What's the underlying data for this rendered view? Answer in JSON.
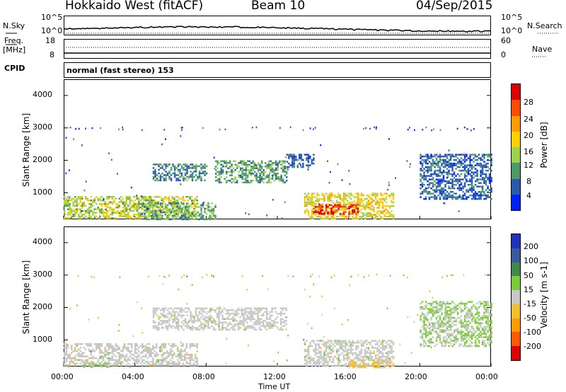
{
  "header": {
    "site": "Hokkaido West (fitACF)",
    "beam": "Beam 10",
    "date": "04/Sep/2015"
  },
  "top_panels": {
    "nsky_label": "N.Sky",
    "nsky_ticks": [
      "10^5",
      "10^0"
    ],
    "nsearch_label": "N.Search",
    "nsearch_ticks": [
      "10^5",
      "10^0"
    ],
    "freq_label": "Freq.",
    "freq_unit": "[MHz]",
    "freq_ticks": [
      "18",
      "8"
    ],
    "nave_label": "Nave",
    "nave_ticks": [
      "60",
      "0"
    ],
    "cpid_label": "CPID",
    "cpid_value": "normal (fast stereo) 153"
  },
  "power_panel": {
    "ylabel": "Slant Range [km]",
    "yticks": [
      "4000",
      "3000",
      "2000",
      "1000"
    ],
    "colorbar_label": "Power [dB]",
    "colorbar_ticks": [
      "28",
      "24",
      "20",
      "16",
      "12",
      "8",
      "4"
    ],
    "colorbar_colors": [
      "#e00000",
      "#ff4a00",
      "#ff9a00",
      "#ffcf00",
      "#9ed24c",
      "#4a9a6a",
      "#2a5ab0",
      "#0020ff"
    ]
  },
  "velocity_panel": {
    "ylabel": "Slant Range [km]",
    "yticks": [
      "4000",
      "3000",
      "2000",
      "1000"
    ],
    "colorbar_label": "Velocity [m s-1]",
    "colorbar_ticks": [
      "200",
      "100",
      "50",
      "15",
      "-15",
      "-50",
      "-100",
      "-200"
    ],
    "colorbar_colors": [
      "#2030c0",
      "#3a5aa0",
      "#3f8a4a",
      "#7ccc3a",
      "#c8c8c8",
      "#f0c030",
      "#ff9a00",
      "#ff5a00",
      "#e00000"
    ]
  },
  "xaxis": {
    "ticks": [
      "00:00",
      "04:00",
      "08:00",
      "12:00",
      "16:00",
      "20:00",
      "00:00"
    ],
    "label": "Time UT"
  },
  "chart_data": [
    {
      "type": "heatmap",
      "name": "Power",
      "x_range_hours": [
        0,
        24
      ],
      "y_range_km": [
        180,
        4500
      ],
      "value_range_db": [
        0,
        30
      ],
      "regions": [
        {
          "t0": 0.0,
          "t1": 7.5,
          "r0": 200,
          "r1": 900,
          "value": 14
        },
        {
          "t0": 4.5,
          "t1": 8.5,
          "r0": 200,
          "r1": 700,
          "value": 10
        },
        {
          "t0": 5.0,
          "t1": 8.0,
          "r0": 1400,
          "r1": 1900,
          "value": 8
        },
        {
          "t0": 8.5,
          "t1": 12.5,
          "r0": 1300,
          "r1": 2000,
          "value": 10
        },
        {
          "t0": 13.5,
          "t1": 18.5,
          "r0": 200,
          "r1": 1000,
          "value": 16
        },
        {
          "t0": 14.0,
          "t1": 16.5,
          "r0": 350,
          "r1": 650,
          "value": 26
        },
        {
          "t0": 12.5,
          "t1": 14.0,
          "r0": 1800,
          "r1": 2200,
          "value": 6
        },
        {
          "t0": 20.0,
          "t1": 24.0,
          "r0": 800,
          "r1": 2200,
          "value": 6
        }
      ]
    },
    {
      "type": "heatmap",
      "name": "Velocity",
      "x_range_hours": [
        0,
        24
      ],
      "y_range_km": [
        180,
        4500
      ],
      "value_range_ms": [
        -250,
        250
      ],
      "regions": [
        {
          "t0": 0.0,
          "t1": 7.5,
          "r0": 200,
          "r1": 900,
          "value": 0
        },
        {
          "t0": 5.0,
          "t1": 12.5,
          "r0": 1300,
          "r1": 2000,
          "value": 0
        },
        {
          "t0": 13.5,
          "t1": 18.5,
          "r0": 200,
          "r1": 1000,
          "value": 0
        },
        {
          "t0": 16.0,
          "t1": 18.5,
          "r0": 180,
          "r1": 400,
          "value": -50
        },
        {
          "t0": 20.0,
          "t1": 24.0,
          "r0": 800,
          "r1": 2200,
          "value": 30
        },
        {
          "t0": 1.0,
          "t1": 2.5,
          "r0": 180,
          "r1": 300,
          "value": 30
        }
      ]
    }
  ]
}
